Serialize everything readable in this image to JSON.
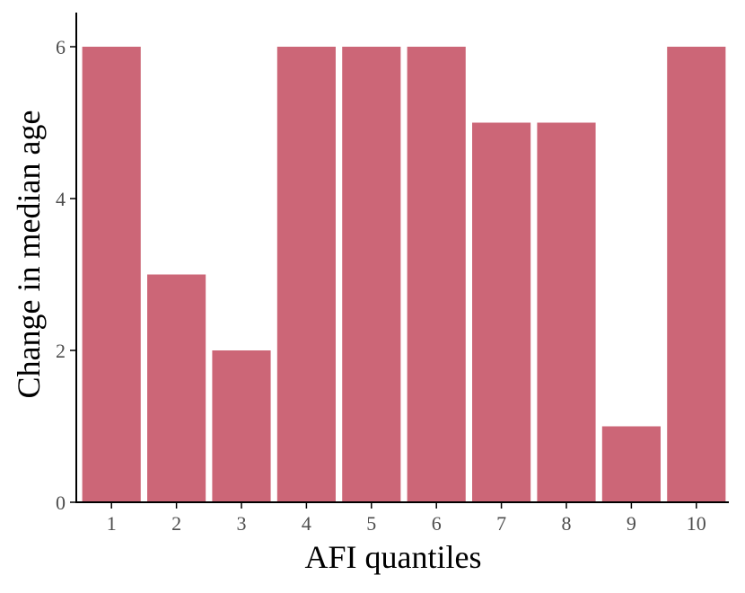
{
  "chart_data": {
    "type": "bar",
    "categories": [
      "1",
      "2",
      "3",
      "4",
      "5",
      "6",
      "7",
      "8",
      "9",
      "10"
    ],
    "values": [
      6,
      3,
      2,
      6,
      6,
      6,
      5,
      5,
      1,
      6
    ],
    "title": "",
    "xlabel": "AFI quantiles",
    "ylabel": "Change in median age",
    "ylim": [
      0,
      6.4
    ],
    "yticks": [
      0,
      2,
      4,
      6
    ],
    "grid": false,
    "bar_color": "#cc6677"
  }
}
